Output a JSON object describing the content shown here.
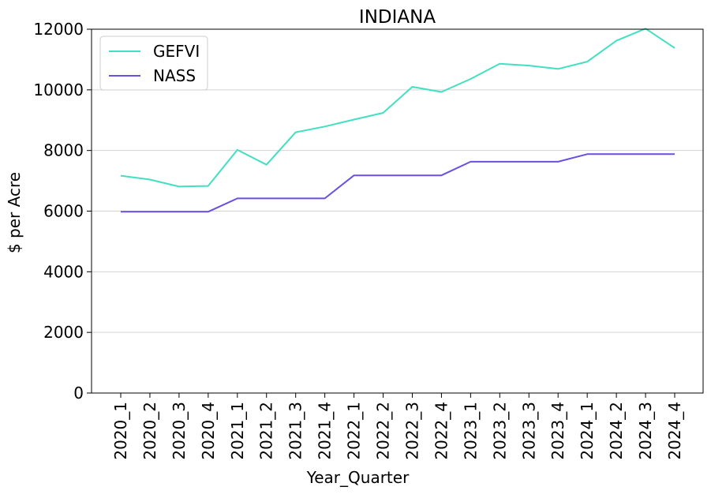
{
  "chart_data": {
    "type": "line",
    "title": "INDIANA",
    "xlabel": "Year_Quarter",
    "ylabel": "$ per Acre",
    "categories": [
      "2020_1",
      "2020_2",
      "2020_3",
      "2020_4",
      "2021_1",
      "2021_2",
      "2021_3",
      "2021_4",
      "2022_1",
      "2022_2",
      "2022_3",
      "2022_4",
      "2023_1",
      "2023_2",
      "2023_3",
      "2023_4",
      "2024_1",
      "2024_2",
      "2024_3",
      "2024_4"
    ],
    "ylim": [
      0,
      12000
    ],
    "yticks": [
      0,
      2000,
      4000,
      6000,
      8000,
      10000,
      12000
    ],
    "ytick_labels": [
      "0",
      "2000",
      "4000",
      "6000",
      "8000",
      "10000",
      "12000"
    ],
    "grid": "horizontal",
    "legend_position": "top-left",
    "series": [
      {
        "name": "GEFVI",
        "color": "#40E0C0",
        "values": [
          7170,
          7040,
          6810,
          6830,
          8020,
          7530,
          8600,
          8790,
          9020,
          9240,
          10100,
          9930,
          10360,
          10860,
          10800,
          10690,
          10930,
          11620,
          12020,
          11380
        ]
      },
      {
        "name": "NASS",
        "color": "#6A4FE0",
        "values": [
          5980,
          5980,
          5980,
          5980,
          6420,
          6420,
          6420,
          6420,
          7180,
          7180,
          7180,
          7180,
          7630,
          7630,
          7630,
          7630,
          7880,
          7880,
          7880,
          7880
        ]
      }
    ]
  }
}
